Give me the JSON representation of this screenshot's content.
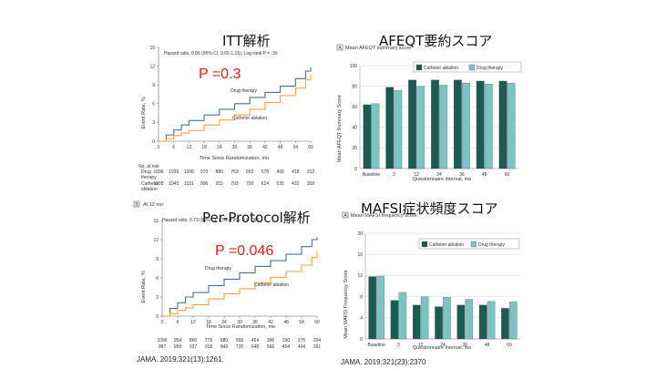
{
  "titles": {
    "itt": "ITT解析",
    "pp": "Per-Protocol解析",
    "afeqt": "AFEQT要約スコア",
    "mafsi": "MAFSI症状頻度スコア"
  },
  "p_values": {
    "itt": "P =0.3",
    "pp": "P =0.046"
  },
  "citations": {
    "left": "JAMA. 2019;321(13):1261.",
    "right": "JAMA. 2019;321(23):2370"
  },
  "colors": {
    "drug": "#4a7098",
    "ablation": "#f2a33a",
    "bar_ablation": "#1d5a54",
    "bar_drug": "#7cc4c4",
    "pvalue": "#e0201c"
  },
  "chart_data": [
    {
      "id": "itt",
      "type": "line",
      "subtitle": "Hazard ratio, 0.86 (95% CI, 0.65-1.15); Log-rank P = .30",
      "xlabel": "Time Since Randomization, mo",
      "ylabel": "Event Rate, %",
      "xlim": [
        0,
        60
      ],
      "ylim": [
        0,
        15
      ],
      "xticks": [
        0,
        6,
        12,
        18,
        24,
        30,
        36,
        42,
        48,
        54,
        60
      ],
      "yticks": [
        0,
        3,
        6,
        9,
        12,
        15
      ],
      "series": [
        {
          "name": "Drug therapy",
          "x": [
            0,
            3,
            6,
            9,
            12,
            18,
            24,
            30,
            36,
            42,
            48,
            54,
            58,
            60
          ],
          "y": [
            0,
            1.0,
            1.8,
            2.6,
            3.3,
            4.2,
            5.1,
            6.0,
            7.0,
            7.8,
            8.8,
            10.0,
            11.2,
            11.8
          ]
        },
        {
          "name": "Catheter ablation",
          "x": [
            0,
            3,
            6,
            9,
            12,
            18,
            24,
            30,
            36,
            42,
            48,
            54,
            58,
            60
          ],
          "y": [
            0,
            0.4,
            0.9,
            1.3,
            1.7,
            2.6,
            3.4,
            4.2,
            5.1,
            6.2,
            7.3,
            8.5,
            9.8,
            10.6
          ]
        }
      ],
      "risk_table": {
        "heading": "No. at risk",
        "rows": [
          {
            "label": "Drug therapy",
            "values": [
              "1096",
              "1036",
              "1006",
              "970",
              "880",
              "763",
              "652",
              "578",
              "499",
              "418",
              "312"
            ]
          },
          {
            "label": "Catheter ablation",
            "values": [
              "1108",
              "1045",
              "1021",
              "996",
              "915",
              "793",
              "700",
              "614",
              "535",
              "432",
              "309"
            ]
          }
        ]
      }
    },
    {
      "id": "pp",
      "type": "line",
      "panel": "B",
      "panel_label": "At 12 mo",
      "subtitle": "Hazard ratio, 0.73 (95% CI, 0.54-0.99); P = .046",
      "xlabel": "Time Since Randomization, mo",
      "ylabel": "Event Rate, %",
      "xlim": [
        0,
        60
      ],
      "ylim": [
        0,
        15
      ],
      "xticks": [
        0,
        6,
        12,
        18,
        24,
        30,
        36,
        42,
        48,
        54,
        60
      ],
      "yticks": [
        0,
        3,
        6,
        9,
        12,
        15
      ],
      "series": [
        {
          "name": "Drug therapy",
          "x": [
            0,
            3,
            6,
            9,
            12,
            18,
            24,
            30,
            36,
            42,
            48,
            54,
            58,
            60
          ],
          "y": [
            0,
            1.2,
            2.1,
            3.0,
            3.7,
            4.8,
            5.8,
            6.8,
            7.8,
            8.7,
            9.7,
            10.9,
            12.0,
            12.4
          ]
        },
        {
          "name": "Catheter ablation",
          "x": [
            0,
            3,
            6,
            9,
            12,
            18,
            24,
            30,
            36,
            42,
            48,
            54,
            58,
            60
          ],
          "y": [
            0,
            0.4,
            0.9,
            1.3,
            1.8,
            2.7,
            3.5,
            4.3,
            5.2,
            6.1,
            7.0,
            8.0,
            9.2,
            10.2
          ]
        }
      ],
      "risk_table": {
        "rows": [
          {
            "label": "",
            "values": [
              "1096",
              "954",
              "860",
              "778",
              "680",
              "566",
              "464",
              "396",
              "330",
              "275",
              "204"
            ]
          },
          {
            "label": "",
            "values": [
              "987",
              "958",
              "937",
              "918",
              "849",
              "735",
              "648",
              "566",
              "494",
              "404",
              "291"
            ]
          }
        ]
      }
    },
    {
      "id": "afeqt",
      "type": "bar",
      "panel": "A",
      "subtitle": "Mean AFEQT summary score",
      "xlabel": "Questionnaire Interval, mo",
      "ylabel": "Mean AFEQT Summary Score",
      "ylim": [
        0,
        100
      ],
      "yticks": [
        0,
        20,
        40,
        60,
        80,
        100
      ],
      "categories": [
        "Baseline",
        "3",
        "12",
        "24",
        "36",
        "48",
        "60"
      ],
      "series": [
        {
          "name": "Catheter ablation",
          "values": [
            62,
            79,
            86,
            86,
            86,
            85,
            85
          ]
        },
        {
          "name": "Drug therapy",
          "values": [
            63,
            76,
            80,
            81,
            83,
            82,
            83
          ]
        }
      ]
    },
    {
      "id": "mafsi",
      "type": "bar",
      "panel": "A",
      "subtitle": "Mean MAFSI frequency score",
      "xlabel": "Questionnaire Interval, mo",
      "ylabel": "Mean MAFSI Frequency Score",
      "ylim": [
        0,
        20
      ],
      "yticks": [
        0,
        4,
        8,
        12,
        16,
        20
      ],
      "categories": [
        "Baseline",
        "3",
        "12",
        "24",
        "36",
        "48",
        "60"
      ],
      "series": [
        {
          "name": "Catheter ablation",
          "values": [
            11.8,
            7.3,
            6.4,
            6.1,
            6.4,
            6.4,
            5.8
          ]
        },
        {
          "name": "Drug therapy",
          "values": [
            11.9,
            8.8,
            8.0,
            7.9,
            7.5,
            7.1,
            7.0
          ]
        }
      ]
    }
  ]
}
